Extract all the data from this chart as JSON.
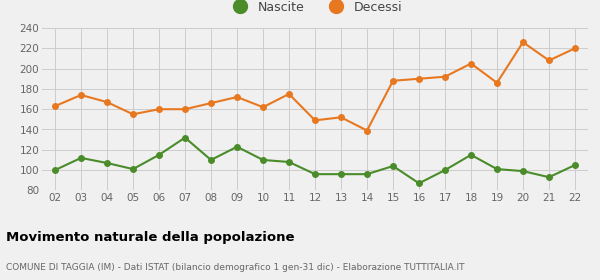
{
  "years": [
    "02",
    "03",
    "04",
    "05",
    "06",
    "07",
    "08",
    "09",
    "10",
    "11",
    "12",
    "13",
    "14",
    "15",
    "16",
    "17",
    "18",
    "19",
    "20",
    "21",
    "22"
  ],
  "nascite": [
    100,
    112,
    107,
    101,
    115,
    132,
    110,
    123,
    110,
    108,
    96,
    96,
    96,
    104,
    87,
    100,
    115,
    101,
    99,
    93,
    105
  ],
  "decessi": [
    163,
    174,
    167,
    155,
    160,
    160,
    166,
    172,
    162,
    175,
    149,
    152,
    139,
    188,
    190,
    192,
    205,
    186,
    226,
    208,
    220
  ],
  "nascite_color": "#4a8c2a",
  "decessi_color": "#e87820",
  "background_color": "#f0f0f0",
  "grid_color": "#cccccc",
  "ylim": [
    80,
    240
  ],
  "yticks": [
    80,
    100,
    120,
    140,
    160,
    180,
    200,
    220,
    240
  ],
  "title": "Movimento naturale della popolazione",
  "subtitle": "COMUNE DI TAGGIA (IM) - Dati ISTAT (bilancio demografico 1 gen-31 dic) - Elaborazione TUTTITALIA.IT",
  "legend_nascite": "Nascite",
  "legend_decessi": "Decessi",
  "marker_size": 4,
  "line_width": 1.5
}
